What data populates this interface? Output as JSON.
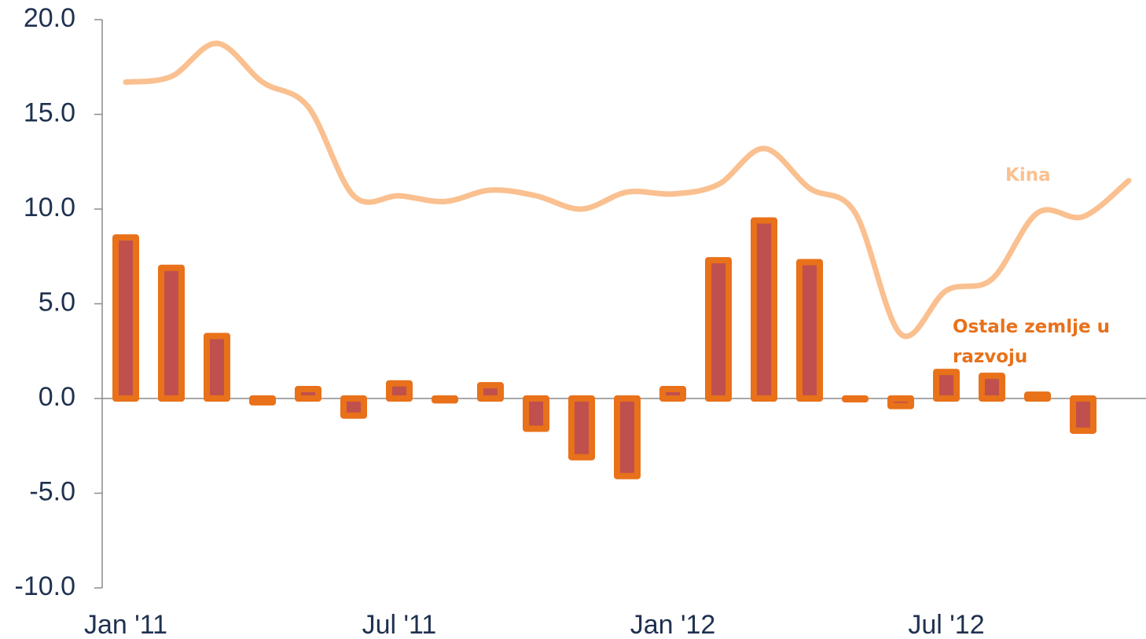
{
  "chart_data": {
    "type": "bar_line",
    "categories": [
      "Jan '11",
      null,
      null,
      null,
      null,
      null,
      "Jul '11",
      null,
      null,
      null,
      null,
      null,
      "Jan '12",
      null,
      null,
      null,
      null,
      null,
      "Jul '12",
      null,
      null,
      null,
      null
    ],
    "series": [
      {
        "name": "Ostale zemlje u razvoju",
        "type": "bar",
        "color": "#e8711a",
        "fill": "#c0504d",
        "values": [
          8.5,
          6.9,
          3.3,
          -0.2,
          0.5,
          -0.9,
          0.8,
          -0.1,
          0.7,
          -1.6,
          -3.1,
          -4.1,
          0.5,
          7.3,
          9.4,
          7.2,
          0.0,
          -0.4,
          1.4,
          1.2,
          0.2,
          -1.7,
          null
        ]
      },
      {
        "name": "Kina",
        "type": "line",
        "color": "#fac090",
        "values": [
          16.7,
          17.0,
          18.75,
          16.7,
          15.4,
          10.7,
          10.7,
          10.4,
          11.0,
          10.7,
          10.0,
          10.9,
          10.8,
          11.3,
          13.2,
          11.1,
          9.8,
          3.4,
          5.7,
          6.3,
          9.8,
          9.6,
          11.5
        ]
      }
    ],
    "ylim": [
      -10,
      20
    ],
    "yticks": [
      {
        "value": -10,
        "label": "-10.0"
      },
      {
        "value": -5,
        "label": "-5.0"
      },
      {
        "value": 0,
        "label": "0.0"
      },
      {
        "value": 5,
        "label": "5.0"
      },
      {
        "value": 10,
        "label": "10.0"
      },
      {
        "value": 15,
        "label": "15.0"
      },
      {
        "value": 20,
        "label": "20.0"
      }
    ]
  }
}
